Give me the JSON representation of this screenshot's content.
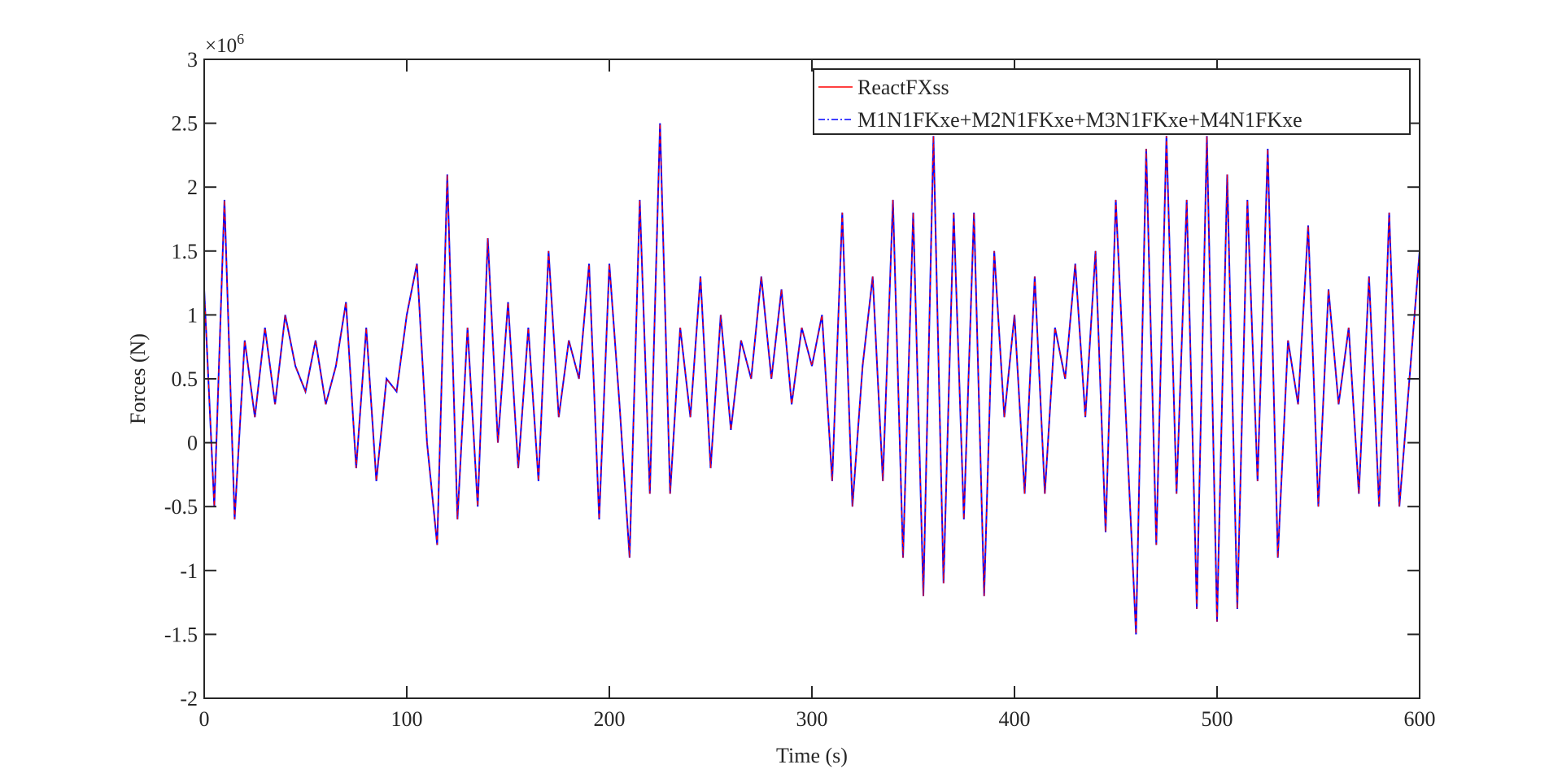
{
  "chart_data": {
    "type": "line",
    "title": "",
    "xlabel": "Time (s)",
    "ylabel": "Forces (N)",
    "y_multiplier_label": "×10",
    "y_multiplier_exp": "6",
    "xlim": [
      0,
      600
    ],
    "ylim": [
      -2,
      3
    ],
    "xticks": [
      0,
      100,
      200,
      300,
      400,
      500,
      600
    ],
    "yticks": [
      -2,
      -1.5,
      -1,
      -0.5,
      0,
      0.5,
      1,
      1.5,
      2,
      2.5,
      3
    ],
    "ytick_labels": [
      "-2",
      "-1.5",
      "-1",
      "-0.5",
      "0",
      "0.5",
      "1",
      "1.5",
      "2",
      "2.5",
      "3"
    ],
    "grid": false,
    "legend_position": "top-right",
    "x": [
      0,
      5,
      10,
      15,
      20,
      25,
      30,
      35,
      40,
      45,
      50,
      55,
      60,
      65,
      70,
      75,
      80,
      85,
      90,
      95,
      100,
      105,
      110,
      115,
      120,
      125,
      130,
      135,
      140,
      145,
      150,
      155,
      160,
      165,
      170,
      175,
      180,
      185,
      190,
      195,
      200,
      205,
      210,
      215,
      220,
      225,
      230,
      235,
      240,
      245,
      250,
      255,
      260,
      265,
      270,
      275,
      280,
      285,
      290,
      295,
      300,
      305,
      310,
      315,
      320,
      325,
      330,
      335,
      340,
      345,
      350,
      355,
      360,
      365,
      370,
      375,
      380,
      385,
      390,
      395,
      400,
      405,
      410,
      415,
      420,
      425,
      430,
      435,
      440,
      445,
      450,
      455,
      460,
      465,
      470,
      475,
      480,
      485,
      490,
      495,
      500,
      505,
      510,
      515,
      520,
      525,
      530,
      535,
      540,
      545,
      550,
      555,
      560,
      565,
      570,
      575,
      580,
      585,
      590,
      595,
      600
    ],
    "series": [
      {
        "name": "ReactFXss",
        "color": "#ff0000",
        "style": "solid",
        "values": [
          1.2,
          -0.5,
          1.9,
          -0.6,
          0.8,
          0.2,
          0.9,
          0.3,
          1.0,
          0.6,
          0.4,
          0.8,
          0.3,
          0.6,
          1.1,
          -0.2,
          0.9,
          -0.3,
          0.5,
          0.4,
          1.0,
          1.4,
          0.0,
          -0.8,
          2.1,
          -0.6,
          0.9,
          -0.5,
          1.6,
          0.0,
          1.1,
          -0.2,
          0.9,
          -0.3,
          1.5,
          0.2,
          0.8,
          0.5,
          1.4,
          -0.6,
          1.4,
          0.3,
          -0.9,
          1.9,
          -0.4,
          2.5,
          -0.4,
          0.9,
          0.2,
          1.3,
          -0.2,
          1.0,
          0.1,
          0.8,
          0.5,
          1.3,
          0.5,
          1.2,
          0.3,
          0.9,
          0.6,
          1.0,
          -0.3,
          1.8,
          -0.5,
          0.6,
          1.3,
          -0.3,
          1.9,
          -0.9,
          1.8,
          -1.2,
          2.4,
          -1.1,
          1.8,
          -0.6,
          1.8,
          -1.2,
          1.5,
          0.2,
          1.0,
          -0.4,
          1.3,
          -0.4,
          0.9,
          0.5,
          1.4,
          0.2,
          1.5,
          -0.7,
          1.9,
          0.2,
          -1.5,
          2.3,
          -0.8,
          2.4,
          -0.4,
          1.9,
          -1.3,
          2.4,
          -1.4,
          2.1,
          -1.3,
          1.9,
          -0.3,
          2.3,
          -0.9,
          0.8,
          0.3,
          1.7,
          -0.5,
          1.2,
          0.3,
          0.9,
          -0.4,
          1.3,
          -0.5,
          1.8,
          -0.5,
          0.5,
          1.5
        ]
      },
      {
        "name": "M1N1FKxe+M2N1FKxe+M3N1FKxe+M4N1FKxe",
        "color": "#0000ff",
        "style": "dashdot",
        "values": [
          1.2,
          -0.5,
          1.9,
          -0.6,
          0.8,
          0.2,
          0.9,
          0.3,
          1.0,
          0.6,
          0.4,
          0.8,
          0.3,
          0.6,
          1.1,
          -0.2,
          0.9,
          -0.3,
          0.5,
          0.4,
          1.0,
          1.4,
          0.0,
          -0.8,
          2.1,
          -0.6,
          0.9,
          -0.5,
          1.6,
          0.0,
          1.1,
          -0.2,
          0.9,
          -0.3,
          1.5,
          0.2,
          0.8,
          0.5,
          1.4,
          -0.6,
          1.4,
          0.3,
          -0.9,
          1.9,
          -0.4,
          2.5,
          -0.4,
          0.9,
          0.2,
          1.3,
          -0.2,
          1.0,
          0.1,
          0.8,
          0.5,
          1.3,
          0.5,
          1.2,
          0.3,
          0.9,
          0.6,
          1.0,
          -0.3,
          1.8,
          -0.5,
          0.6,
          1.3,
          -0.3,
          1.9,
          -0.9,
          1.8,
          -1.2,
          2.4,
          -1.1,
          1.8,
          -0.6,
          1.8,
          -1.2,
          1.5,
          0.2,
          1.0,
          -0.4,
          1.3,
          -0.4,
          0.9,
          0.5,
          1.4,
          0.2,
          1.5,
          -0.7,
          1.9,
          0.2,
          -1.5,
          2.3,
          -0.8,
          2.4,
          -0.4,
          1.9,
          -1.3,
          2.4,
          -1.4,
          2.1,
          -1.3,
          1.9,
          -0.3,
          2.3,
          -0.9,
          0.8,
          0.3,
          1.7,
          -0.5,
          1.2,
          0.3,
          0.9,
          -0.4,
          1.3,
          -0.5,
          1.8,
          -0.5,
          0.5,
          1.5
        ]
      }
    ]
  }
}
